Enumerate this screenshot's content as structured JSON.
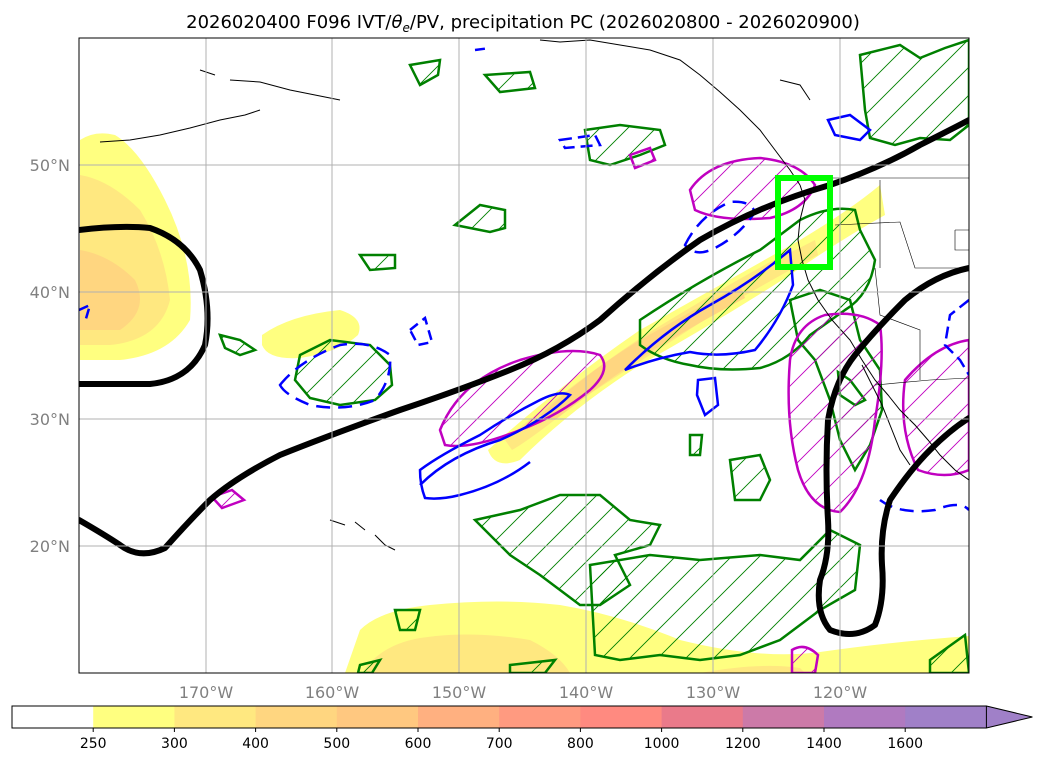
{
  "title": {
    "prefix": "2026020400 F096 IVT/",
    "theta": "θ",
    "theta_sub": "e",
    "suffix": "/PV, precipitation PC (2026020800 - 2026020900)"
  },
  "axes": {
    "lat_labels": [
      "50°N",
      "40°N",
      "30°N",
      "20°N"
    ],
    "lon_labels": [
      "170°W",
      "160°W",
      "150°W",
      "140°W",
      "130°W",
      "120°W"
    ],
    "tick_color": "#808080"
  },
  "colorbar": {
    "labels": [
      "250",
      "300",
      "400",
      "500",
      "600",
      "700",
      "800",
      "1000",
      "1200",
      "1400",
      "1600"
    ],
    "colors": [
      "#ffffff",
      "#ffff80",
      "#ffe880",
      "#ffd680",
      "#ffc880",
      "#ffb080",
      "#ff9a80",
      "#ff8a80",
      "#ea7a8a",
      "#cc7aa8",
      "#b07ac0",
      "#a080c8"
    ]
  },
  "legend_colors": {
    "theta_e": "#000000",
    "pv_positive": "#0000ff",
    "precip_pc": "#008000",
    "magenta": "#c000c0",
    "target_box": "#00ff00"
  }
}
